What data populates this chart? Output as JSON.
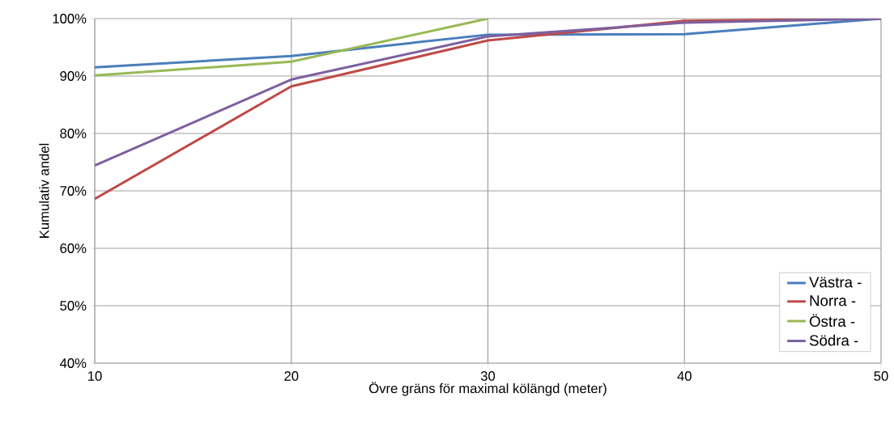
{
  "chart_data": {
    "type": "line",
    "xlabel": "Övre gräns för maximal kölängd (meter)",
    "ylabel": "Kumulativ andel",
    "x": [
      10,
      20,
      30,
      40,
      50
    ],
    "series": [
      {
        "name": "Västra -",
        "color": "#4a7ebb",
        "values": [
          91.5,
          93.5,
          97.2,
          97.3,
          100
        ]
      },
      {
        "name": "Norra -",
        "color": "#be4b48",
        "values": [
          68.6,
          88.2,
          96.2,
          99.6,
          100
        ]
      },
      {
        "name": "Östra -",
        "color": "#98b954",
        "values": [
          90.1,
          92.5,
          100,
          null,
          null
        ]
      },
      {
        "name": "Södra -",
        "color": "#7d60a0",
        "values": [
          74.4,
          89.4,
          96.9,
          99.3,
          100
        ]
      }
    ],
    "xlim": [
      10,
      50
    ],
    "xticks": [
      10,
      20,
      30,
      40,
      50
    ],
    "ylim": [
      40,
      100
    ],
    "yticks": [
      {
        "value": 40,
        "label": "40%"
      },
      {
        "value": 50,
        "label": "50%"
      },
      {
        "value": 60,
        "label": "60%"
      },
      {
        "value": 70,
        "label": "70%"
      },
      {
        "value": 80,
        "label": "80%"
      },
      {
        "value": 90,
        "label": "90%"
      },
      {
        "value": 100,
        "label": "100%"
      }
    ],
    "grid": true,
    "legend": "bottom right",
    "marker": "none",
    "line_style": "solid"
  }
}
